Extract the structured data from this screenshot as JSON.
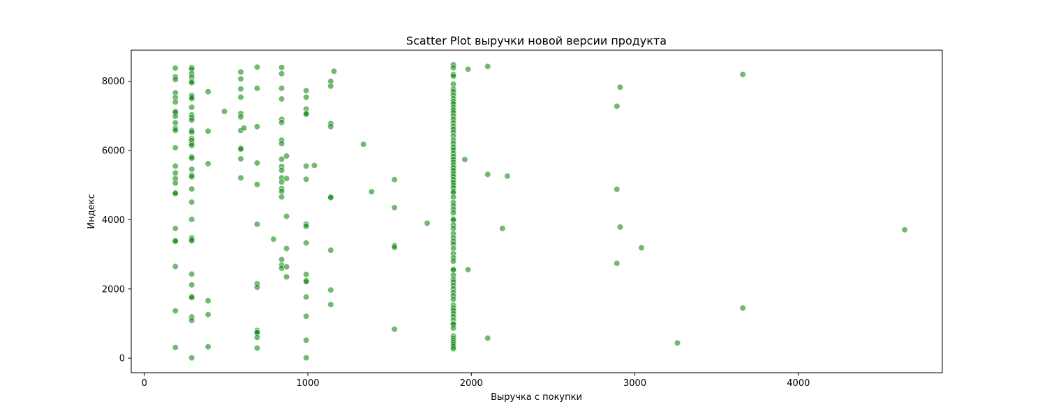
{
  "chart_data": {
    "type": "scatter",
    "title": "Scatter Plot выручки новой версии продукта",
    "xlabel": "Выручка с покупки",
    "ylabel": "Индекс",
    "xlim": [
      -80,
      4880
    ],
    "ylim": [
      -420,
      8900
    ],
    "xticks": [
      0,
      1000,
      2000,
      3000,
      4000
    ],
    "yticks": [
      0,
      2000,
      4000,
      6000,
      8000
    ],
    "grid": false,
    "legend": "none",
    "point_color": "#008000",
    "point_opacity": 0.55,
    "points": [
      [
        190,
        8380
      ],
      [
        190,
        8130
      ],
      [
        190,
        8050
      ],
      [
        190,
        7670
      ],
      [
        190,
        7530
      ],
      [
        190,
        7400
      ],
      [
        190,
        7130
      ],
      [
        190,
        7100
      ],
      [
        190,
        6990
      ],
      [
        190,
        6800
      ],
      [
        190,
        6640
      ],
      [
        190,
        6580
      ],
      [
        190,
        6080
      ],
      [
        190,
        5550
      ],
      [
        190,
        5350
      ],
      [
        190,
        5190
      ],
      [
        190,
        5060
      ],
      [
        190,
        4780
      ],
      [
        190,
        4760
      ],
      [
        190,
        3750
      ],
      [
        190,
        3400
      ],
      [
        190,
        3380
      ],
      [
        190,
        2650
      ],
      [
        190,
        1370
      ],
      [
        190,
        310
      ],
      [
        290,
        8400
      ],
      [
        290,
        8350
      ],
      [
        290,
        8220
      ],
      [
        290,
        8120
      ],
      [
        290,
        8000
      ],
      [
        290,
        7960
      ],
      [
        290,
        7590
      ],
      [
        290,
        7550
      ],
      [
        290,
        7500
      ],
      [
        290,
        7250
      ],
      [
        290,
        7030
      ],
      [
        290,
        6950
      ],
      [
        290,
        6880
      ],
      [
        290,
        6580
      ],
      [
        290,
        6530
      ],
      [
        290,
        6350
      ],
      [
        290,
        6290
      ],
      [
        290,
        6200
      ],
      [
        290,
        6150
      ],
      [
        290,
        5820
      ],
      [
        290,
        5780
      ],
      [
        290,
        5460
      ],
      [
        290,
        5290
      ],
      [
        290,
        5240
      ],
      [
        290,
        4890
      ],
      [
        290,
        4510
      ],
      [
        290,
        4010
      ],
      [
        290,
        3480
      ],
      [
        290,
        3440
      ],
      [
        290,
        3390
      ],
      [
        290,
        2430
      ],
      [
        290,
        2120
      ],
      [
        290,
        1780
      ],
      [
        290,
        1750
      ],
      [
        290,
        1190
      ],
      [
        290,
        1090
      ],
      [
        290,
        10
      ],
      [
        390,
        7700
      ],
      [
        390,
        6560
      ],
      [
        390,
        5620
      ],
      [
        390,
        1660
      ],
      [
        390,
        1260
      ],
      [
        390,
        330
      ],
      [
        490,
        7130
      ],
      [
        590,
        8270
      ],
      [
        590,
        8070
      ],
      [
        590,
        7780
      ],
      [
        590,
        7540
      ],
      [
        590,
        7070
      ],
      [
        590,
        6970
      ],
      [
        590,
        6580
      ],
      [
        610,
        6650
      ],
      [
        590,
        6070
      ],
      [
        590,
        6040
      ],
      [
        590,
        5760
      ],
      [
        590,
        5210
      ],
      [
        690,
        8410
      ],
      [
        690,
        7800
      ],
      [
        690,
        6690
      ],
      [
        690,
        5640
      ],
      [
        690,
        5020
      ],
      [
        690,
        3870
      ],
      [
        690,
        2150
      ],
      [
        690,
        2050
      ],
      [
        690,
        800
      ],
      [
        690,
        760
      ],
      [
        690,
        730
      ],
      [
        690,
        600
      ],
      [
        690,
        290
      ],
      [
        790,
        3440
      ],
      [
        840,
        8400
      ],
      [
        840,
        8220
      ],
      [
        840,
        7800
      ],
      [
        840,
        7490
      ],
      [
        840,
        6900
      ],
      [
        840,
        6810
      ],
      [
        840,
        6300
      ],
      [
        840,
        6200
      ],
      [
        840,
        5750
      ],
      [
        840,
        5540
      ],
      [
        840,
        5430
      ],
      [
        840,
        5210
      ],
      [
        840,
        5090
      ],
      [
        840,
        4900
      ],
      [
        840,
        4820
      ],
      [
        840,
        4660
      ],
      [
        840,
        2850
      ],
      [
        840,
        2690
      ],
      [
        840,
        2600
      ],
      [
        870,
        5840
      ],
      [
        870,
        5190
      ],
      [
        870,
        4100
      ],
      [
        870,
        3170
      ],
      [
        870,
        2640
      ],
      [
        870,
        2350
      ],
      [
        990,
        7730
      ],
      [
        990,
        7540
      ],
      [
        990,
        7200
      ],
      [
        990,
        7080
      ],
      [
        990,
        7050
      ],
      [
        990,
        5550
      ],
      [
        990,
        5170
      ],
      [
        990,
        3870
      ],
      [
        990,
        3810
      ],
      [
        990,
        3330
      ],
      [
        990,
        2420
      ],
      [
        990,
        2240
      ],
      [
        990,
        2210
      ],
      [
        990,
        1770
      ],
      [
        990,
        1210
      ],
      [
        990,
        520
      ],
      [
        990,
        10
      ],
      [
        1040,
        5570
      ],
      [
        1140,
        8000
      ],
      [
        1140,
        7860
      ],
      [
        1140,
        6780
      ],
      [
        1140,
        6690
      ],
      [
        1140,
        4660
      ],
      [
        1140,
        4640
      ],
      [
        1140,
        3120
      ],
      [
        1140,
        1970
      ],
      [
        1140,
        1550
      ],
      [
        1160,
        8290
      ],
      [
        1340,
        6180
      ],
      [
        1390,
        4810
      ],
      [
        1530,
        5160
      ],
      [
        1530,
        4350
      ],
      [
        1530,
        3250
      ],
      [
        1530,
        3200
      ],
      [
        1530,
        840
      ],
      [
        1730,
        3900
      ],
      [
        1890,
        8480
      ],
      [
        1890,
        8390
      ],
      [
        1890,
        8200
      ],
      [
        1890,
        8150
      ],
      [
        1890,
        7920
      ],
      [
        1890,
        7780
      ],
      [
        1890,
        7700
      ],
      [
        1890,
        7600
      ],
      [
        1890,
        7500
      ],
      [
        1890,
        7420
      ],
      [
        1890,
        7350
      ],
      [
        1890,
        7250
      ],
      [
        1890,
        7170
      ],
      [
        1890,
        7100
      ],
      [
        1890,
        7000
      ],
      [
        1890,
        6900
      ],
      [
        1890,
        6800
      ],
      [
        1890,
        6700
      ],
      [
        1890,
        6620
      ],
      [
        1890,
        6530
      ],
      [
        1890,
        6420
      ],
      [
        1890,
        6300
      ],
      [
        1890,
        6200
      ],
      [
        1890,
        6100
      ],
      [
        1890,
        6020
      ],
      [
        1890,
        5920
      ],
      [
        1890,
        5830
      ],
      [
        1890,
        5750
      ],
      [
        1890,
        5670
      ],
      [
        1890,
        5580
      ],
      [
        1890,
        5500
      ],
      [
        1890,
        5420
      ],
      [
        1890,
        5330
      ],
      [
        1890,
        5250
      ],
      [
        1890,
        5160
      ],
      [
        1890,
        5080
      ],
      [
        1890,
        5000
      ],
      [
        1890,
        4920
      ],
      [
        1890,
        4830
      ],
      [
        1890,
        4780
      ],
      [
        1890,
        4650
      ],
      [
        1890,
        4500
      ],
      [
        1890,
        4400
      ],
      [
        1890,
        4300
      ],
      [
        1890,
        4200
      ],
      [
        1890,
        4020
      ],
      [
        1890,
        3990
      ],
      [
        1890,
        3850
      ],
      [
        1890,
        3750
      ],
      [
        1890,
        3600
      ],
      [
        1890,
        3480
      ],
      [
        1890,
        3380
      ],
      [
        1890,
        3300
      ],
      [
        1890,
        3170
      ],
      [
        1890,
        3020
      ],
      [
        1890,
        2900
      ],
      [
        1890,
        2800
      ],
      [
        1890,
        2570
      ],
      [
        1890,
        2550
      ],
      [
        1890,
        2400
      ],
      [
        1890,
        2280
      ],
      [
        1890,
        2200
      ],
      [
        1890,
        2100
      ],
      [
        1890,
        2000
      ],
      [
        1890,
        1900
      ],
      [
        1890,
        1800
      ],
      [
        1890,
        1700
      ],
      [
        1890,
        1530
      ],
      [
        1890,
        1450
      ],
      [
        1890,
        1380
      ],
      [
        1890,
        1290
      ],
      [
        1890,
        1200
      ],
      [
        1890,
        1100
      ],
      [
        1890,
        1000
      ],
      [
        1890,
        980
      ],
      [
        1890,
        870
      ],
      [
        1890,
        640
      ],
      [
        1890,
        580
      ],
      [
        1890,
        520
      ],
      [
        1890,
        460
      ],
      [
        1890,
        400
      ],
      [
        1890,
        340
      ],
      [
        1890,
        270
      ],
      [
        1960,
        5740
      ],
      [
        1980,
        8350
      ],
      [
        1980,
        2560
      ],
      [
        2100,
        8430
      ],
      [
        2100,
        5310
      ],
      [
        2100,
        580
      ],
      [
        2190,
        3750
      ],
      [
        2220,
        5260
      ],
      [
        2890,
        7280
      ],
      [
        2890,
        4880
      ],
      [
        2890,
        2740
      ],
      [
        2910,
        7830
      ],
      [
        2910,
        3790
      ],
      [
        3040,
        3190
      ],
      [
        3260,
        440
      ],
      [
        3660,
        8200
      ],
      [
        3660,
        1450
      ],
      [
        4650,
        3710
      ]
    ]
  }
}
